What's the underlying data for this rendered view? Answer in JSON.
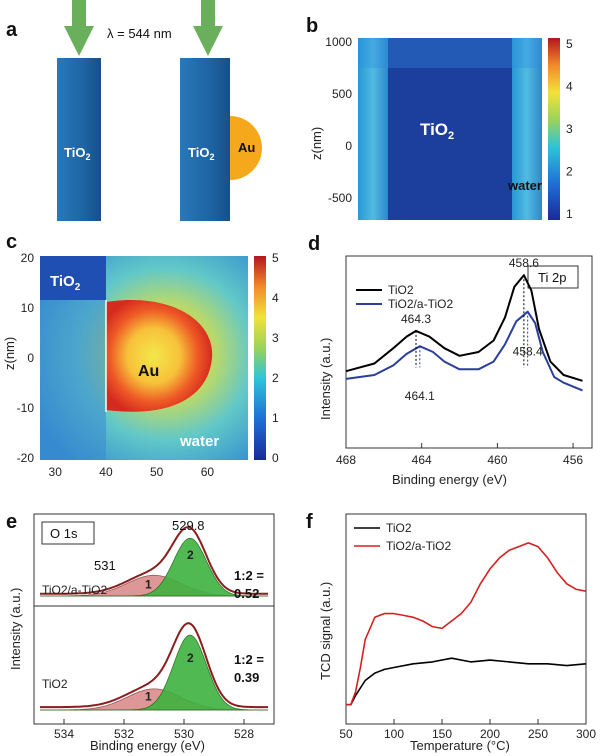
{
  "panels": {
    "a": {
      "letter": "a",
      "wavelength": "λ = 544 nm",
      "rod1_label": "TiO",
      "rod2_label": "TiO",
      "sub2": "2",
      "au_label": "Au",
      "colors": {
        "rod": "#1f66a3",
        "arrow": "#6aaf5b",
        "au": "#f6a81d"
      }
    },
    "b": {
      "letter": "b",
      "yticks": [
        "1000",
        "500",
        "0",
        "-500"
      ],
      "ylabel": "z(nm)",
      "inner_label": "TiO",
      "sub2": "2",
      "water_label": "water",
      "colorbar_ticks": [
        "5",
        "4",
        "3",
        "2",
        "1"
      ]
    },
    "c": {
      "letter": "c",
      "yticks": [
        "20",
        "10",
        "0",
        "-10",
        "-20"
      ],
      "xticks": [
        "30",
        "40",
        "50",
        "60"
      ],
      "ylabel": "z(nm)",
      "tio2_label": "TiO",
      "sub2": "2",
      "au_label": "Au",
      "water_label": "water",
      "colorbar_ticks": [
        "5",
        "4",
        "3",
        "2",
        "1",
        "0"
      ]
    }
  },
  "chart_data": [
    {
      "panel": "d",
      "type": "line",
      "xlabel": "Binding energy (eV)",
      "ylabel": "Intensity (a.u.)",
      "xlim": [
        468,
        455
      ],
      "xticks": [
        "468",
        "464",
        "460",
        "456"
      ],
      "ylim": [
        0,
        1
      ],
      "legend_title": "Ti 2p",
      "legend_position": "top-right",
      "series": [
        {
          "name": "TiO2",
          "color": "#000000",
          "x": [
            468,
            466.5,
            465.5,
            464.8,
            464.3,
            463.6,
            462.8,
            462,
            461,
            460.2,
            459.6,
            459.1,
            458.6,
            458.2,
            457.8,
            457.2,
            456.5,
            455.5
          ],
          "y": [
            0.4,
            0.44,
            0.52,
            0.58,
            0.61,
            0.58,
            0.52,
            0.48,
            0.5,
            0.56,
            0.68,
            0.84,
            0.9,
            0.82,
            0.62,
            0.45,
            0.38,
            0.35
          ]
        },
        {
          "name": "TiO2/a-TiO2",
          "color": "#2b3f9a",
          "x": [
            468,
            466.5,
            465.5,
            464.8,
            464.1,
            463.4,
            462.8,
            462,
            461,
            460.2,
            459.6,
            459.0,
            458.4,
            458.0,
            457.6,
            457.0,
            456.5,
            455.5
          ],
          "y": [
            0.36,
            0.38,
            0.43,
            0.49,
            0.53,
            0.5,
            0.45,
            0.41,
            0.41,
            0.45,
            0.54,
            0.66,
            0.71,
            0.65,
            0.5,
            0.37,
            0.34,
            0.3
          ]
        }
      ],
      "annotations": [
        {
          "text": "458.6",
          "x": 458.6,
          "y": 0.9,
          "color": "#000000"
        },
        {
          "text": "464.3",
          "x": 464.3,
          "y": 0.61,
          "color": "#000000"
        },
        {
          "text": "458.4",
          "x": 458.4,
          "y": 0.71,
          "color": "#2b3f9a"
        },
        {
          "text": "464.1",
          "x": 464.1,
          "y": 0.53,
          "color": "#2b3f9a"
        }
      ]
    },
    {
      "panel": "e",
      "type": "line",
      "xlabel": "Binding energy (eV)",
      "ylabel": "Intensity (a.u.)",
      "xlim": [
        535,
        527
      ],
      "xticks": [
        "534",
        "532",
        "530",
        "528"
      ],
      "legend_title": "O 1s",
      "peak_labels": [
        "531",
        "529.8"
      ],
      "component_labels": [
        "1",
        "2"
      ],
      "subplots": [
        {
          "name": "TiO2/a-TiO2",
          "ratio_text": "1:2 =",
          "ratio_value": "0.52",
          "peak1": {
            "center": 531.0,
            "height": 0.28,
            "width": 0.9
          },
          "peak2": {
            "center": 529.8,
            "height": 0.78,
            "width": 0.55
          }
        },
        {
          "name": "TiO2",
          "ratio_text": "1:2 =",
          "ratio_value": "0.39",
          "peak1": {
            "center": 531.0,
            "height": 0.22,
            "width": 0.9
          },
          "peak2": {
            "center": 529.8,
            "height": 0.78,
            "width": 0.55
          }
        }
      ],
      "colors": {
        "envelope": "#8b1e1e",
        "peak1_fill": "#d98585",
        "peak2_fill": "#3fb23f"
      }
    },
    {
      "panel": "f",
      "type": "line",
      "xlabel": "Temperature (°C)",
      "ylabel": "TCD signal (a.u.)",
      "xlim": [
        50,
        300
      ],
      "xticks": [
        "50",
        "100",
        "150",
        "200",
        "250",
        "300"
      ],
      "legend_position": "top-left",
      "series": [
        {
          "name": "TiO2",
          "color": "#000000",
          "x": [
            50,
            55,
            60,
            70,
            80,
            90,
            100,
            120,
            140,
            160,
            180,
            200,
            220,
            240,
            260,
            280,
            300
          ],
          "y": [
            0.05,
            0.05,
            0.1,
            0.18,
            0.22,
            0.24,
            0.25,
            0.27,
            0.28,
            0.3,
            0.28,
            0.29,
            0.28,
            0.27,
            0.27,
            0.26,
            0.27
          ]
        },
        {
          "name": "TiO2/a-TiO2",
          "color": "#d62020",
          "x": [
            50,
            55,
            60,
            65,
            70,
            80,
            90,
            100,
            110,
            120,
            130,
            140,
            150,
            160,
            170,
            180,
            190,
            200,
            210,
            220,
            230,
            240,
            250,
            260,
            270,
            280,
            290,
            300
          ],
          "y": [
            0.05,
            0.05,
            0.12,
            0.25,
            0.4,
            0.52,
            0.54,
            0.54,
            0.53,
            0.52,
            0.5,
            0.47,
            0.46,
            0.5,
            0.54,
            0.6,
            0.7,
            0.78,
            0.84,
            0.88,
            0.9,
            0.92,
            0.9,
            0.84,
            0.76,
            0.7,
            0.67,
            0.66
          ]
        }
      ]
    }
  ]
}
